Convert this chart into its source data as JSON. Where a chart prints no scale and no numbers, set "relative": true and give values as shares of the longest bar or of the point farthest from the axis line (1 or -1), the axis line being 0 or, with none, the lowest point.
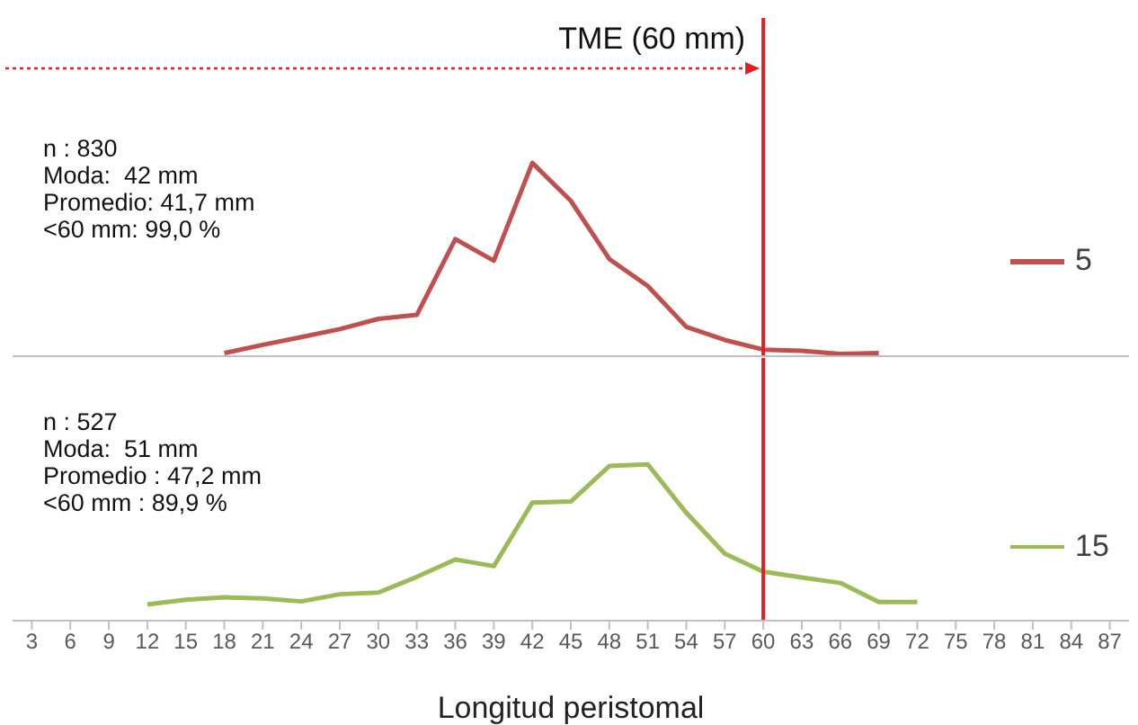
{
  "chart_data": [
    {
      "type": "line",
      "x": [
        18,
        21,
        24,
        27,
        30,
        33,
        36,
        39,
        42,
        45,
        48,
        51,
        54,
        57,
        60,
        63,
        66,
        69
      ],
      "series": [
        {
          "name": "5",
          "color": "#c0504d",
          "values": [
            0.016,
            0.059,
            0.099,
            0.14,
            0.193,
            0.214,
            0.606,
            0.494,
            1,
            0.804,
            0.503,
            0.363,
            0.152,
            0.084,
            0.034,
            0.028,
            0.012,
            0.016
          ]
        }
      ],
      "relative": true,
      "xlim": [
        1.5,
        88.5
      ],
      "tick_labels": false,
      "legend": "right",
      "ref_lines": [
        {
          "axis": "x",
          "value": 60,
          "label": "TME (60 mm)",
          "color": "#e02020"
        }
      ],
      "annotations": [
        "n : 830",
        "Moda:  42 mm",
        "Promedio: 41,7 mm",
        "<60 mm: 99,0 %"
      ]
    },
    {
      "type": "line",
      "x": [
        12,
        15,
        18,
        21,
        24,
        27,
        30,
        33,
        36,
        39,
        42,
        45,
        48,
        51,
        54,
        57,
        60,
        63,
        66,
        69,
        72
      ],
      "series": [
        {
          "name": "15",
          "color": "#9bbb59",
          "values": [
            0.103,
            0.134,
            0.149,
            0.142,
            0.123,
            0.169,
            0.18,
            0.28,
            0.391,
            0.349,
            0.755,
            0.762,
            0.989,
            1,
            0.69,
            0.429,
            0.314,
            0.276,
            0.241,
            0.119,
            0.119
          ]
        }
      ],
      "relative": true,
      "xlim": [
        1.5,
        88.5
      ],
      "xticks": [
        3,
        6,
        9,
        12,
        15,
        18,
        21,
        24,
        27,
        30,
        33,
        36,
        39,
        42,
        45,
        48,
        51,
        54,
        57,
        60,
        63,
        66,
        69,
        72,
        75,
        78,
        81,
        84,
        87
      ],
      "tick_labels": "x",
      "legend": "right",
      "xlabel": "Longitud peristomal",
      "ref_lines": [
        {
          "axis": "x",
          "value": 60,
          "color": "#e02020"
        }
      ],
      "annotations": [
        "n : 527",
        "Moda:  51 mm",
        "Promedio : 47,2 mm",
        "<60 mm : 89,9 %"
      ]
    }
  ]
}
